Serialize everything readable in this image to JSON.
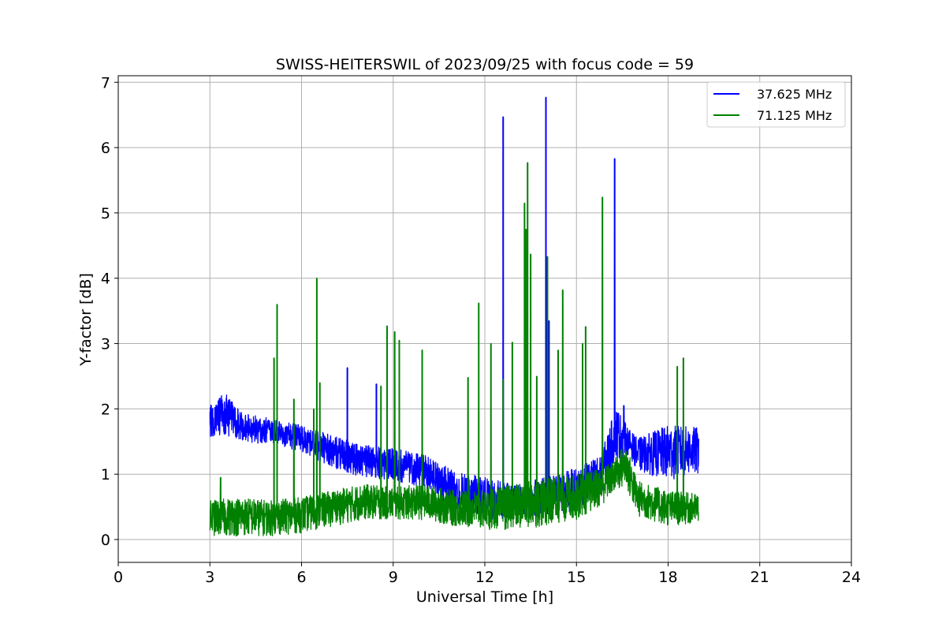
{
  "chart_data": {
    "type": "line",
    "title": "SWISS-HEITERSWIL of 2023/09/25 with focus code = 59",
    "xlabel": "Universal Time [h]",
    "ylabel": "Y-factor [dB]",
    "xlim": [
      0,
      24
    ],
    "ylim": [
      -0.35,
      7.1
    ],
    "xticks": [
      0,
      3,
      6,
      9,
      12,
      15,
      18,
      21,
      24
    ],
    "yticks": [
      0,
      1,
      2,
      3,
      4,
      5,
      6,
      7
    ],
    "grid": true,
    "legend_position": "top-right",
    "series": [
      {
        "name": "37.625 MHz",
        "color": "#0000ff",
        "profile": {
          "x": [
            3.0,
            3.5,
            4.0,
            5.0,
            6.0,
            7.0,
            8.0,
            9.0,
            10.0,
            11.0,
            12.0,
            13.0,
            14.0,
            15.0,
            15.8,
            16.3,
            16.7,
            17.0,
            18.0,
            19.0
          ],
          "low": [
            1.55,
            1.6,
            1.5,
            1.45,
            1.35,
            1.1,
            0.95,
            0.9,
            0.8,
            0.45,
            0.3,
            0.3,
            0.35,
            0.45,
            0.7,
            1.2,
            1.3,
            1.05,
            0.9,
            1.0
          ],
          "high": [
            2.1,
            2.25,
            1.95,
            1.85,
            1.75,
            1.6,
            1.45,
            1.4,
            1.3,
            1.05,
            0.95,
            0.85,
            0.95,
            1.1,
            1.3,
            2.05,
            1.7,
            1.55,
            1.75,
            1.72
          ]
        },
        "spikes": [
          {
            "x": 7.5,
            "y": 2.63
          },
          {
            "x": 8.45,
            "y": 2.38
          },
          {
            "x": 12.6,
            "y": 6.47
          },
          {
            "x": 14.0,
            "y": 6.77
          },
          {
            "x": 14.1,
            "y": 3.35
          },
          {
            "x": 16.25,
            "y": 5.83
          },
          {
            "x": 16.55,
            "y": 2.05
          }
        ]
      },
      {
        "name": "71.125 MHz",
        "color": "#008000",
        "profile": {
          "x": [
            3.0,
            4.0,
            5.0,
            6.0,
            7.0,
            8.0,
            9.0,
            10.0,
            11.0,
            12.0,
            13.0,
            14.0,
            15.0,
            15.8,
            16.2,
            16.6,
            17.0,
            18.0,
            19.0
          ],
          "low": [
            0.05,
            0.05,
            0.05,
            0.1,
            0.2,
            0.3,
            0.3,
            0.3,
            0.2,
            0.15,
            0.15,
            0.2,
            0.3,
            0.5,
            0.7,
            0.8,
            0.35,
            0.2,
            0.25
          ],
          "high": [
            0.6,
            0.65,
            0.6,
            0.65,
            0.75,
            0.85,
            0.8,
            0.85,
            0.75,
            0.75,
            0.85,
            0.95,
            1.0,
            1.1,
            1.2,
            1.5,
            0.9,
            0.75,
            0.7
          ]
        },
        "spikes": [
          {
            "x": 3.35,
            "y": 0.95
          },
          {
            "x": 5.1,
            "y": 2.78
          },
          {
            "x": 5.2,
            "y": 3.6
          },
          {
            "x": 5.75,
            "y": 2.15
          },
          {
            "x": 6.4,
            "y": 2.0
          },
          {
            "x": 6.5,
            "y": 4.0
          },
          {
            "x": 6.6,
            "y": 2.4
          },
          {
            "x": 8.6,
            "y": 2.35
          },
          {
            "x": 8.8,
            "y": 3.27
          },
          {
            "x": 9.05,
            "y": 3.18
          },
          {
            "x": 9.2,
            "y": 3.05
          },
          {
            "x": 9.95,
            "y": 2.9
          },
          {
            "x": 11.45,
            "y": 2.48
          },
          {
            "x": 11.8,
            "y": 3.62
          },
          {
            "x": 12.2,
            "y": 3.0
          },
          {
            "x": 12.6,
            "y": 2.45
          },
          {
            "x": 12.9,
            "y": 3.02
          },
          {
            "x": 13.3,
            "y": 5.15
          },
          {
            "x": 13.35,
            "y": 4.75
          },
          {
            "x": 13.4,
            "y": 5.77
          },
          {
            "x": 13.5,
            "y": 4.37
          },
          {
            "x": 13.7,
            "y": 2.5
          },
          {
            "x": 14.05,
            "y": 4.33
          },
          {
            "x": 14.4,
            "y": 2.9
          },
          {
            "x": 14.55,
            "y": 3.82
          },
          {
            "x": 15.2,
            "y": 3.0
          },
          {
            "x": 15.3,
            "y": 3.26
          },
          {
            "x": 15.85,
            "y": 5.24
          },
          {
            "x": 18.3,
            "y": 2.65
          },
          {
            "x": 18.5,
            "y": 2.78
          }
        ]
      }
    ]
  }
}
